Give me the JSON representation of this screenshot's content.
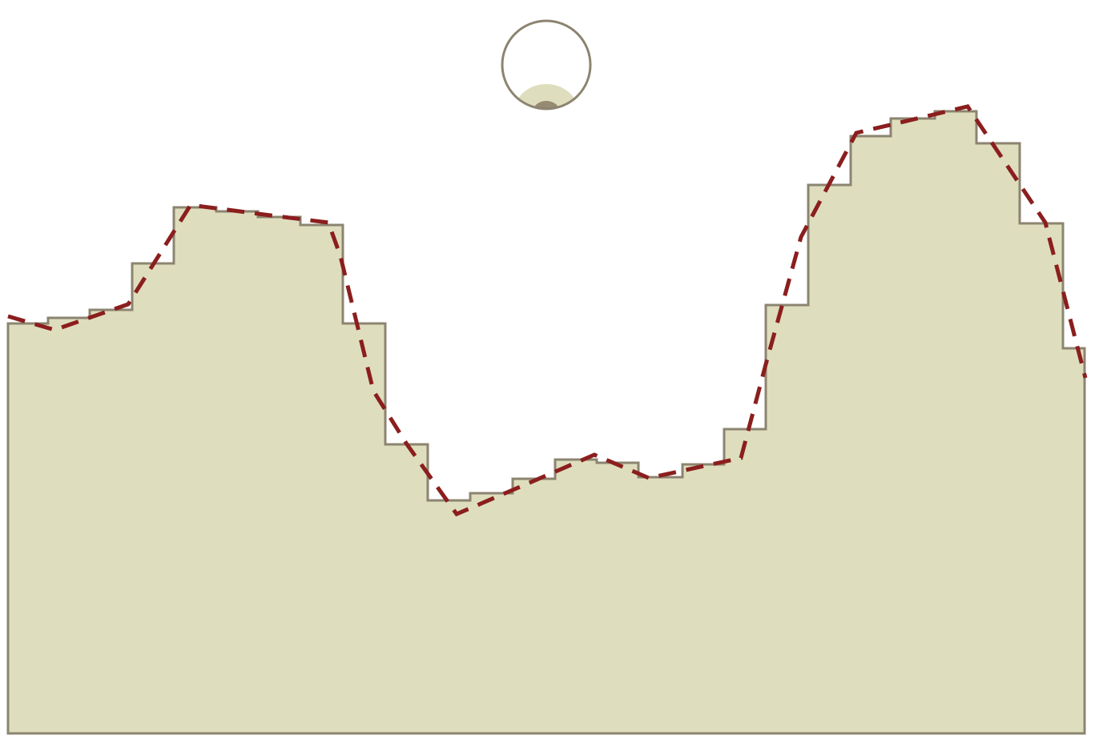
{
  "game": {
    "colors": {
      "background": "#ffffff",
      "terrain_fill": "#dedebe",
      "terrain_stroke": "#8c8470",
      "trajectory": "#8b1e1e",
      "ball_fill": "#ffffff",
      "ball_stroke": "#8c8470",
      "ball_inner_light": "#dedebe",
      "ball_inner_dark": "#968a72"
    },
    "icons": {
      "ball": "ball-icon"
    }
  }
}
